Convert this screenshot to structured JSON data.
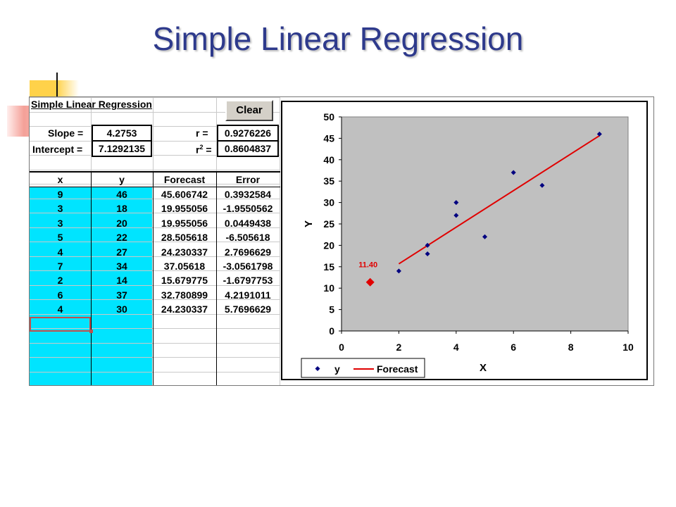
{
  "slide": {
    "title": "Simple Linear Regression"
  },
  "sheet": {
    "heading": "Simple Linear Regression",
    "clear_button": "Clear",
    "slope_label": "Slope =",
    "slope_value": "4.2753",
    "intercept_label": "Intercept =",
    "intercept_value": "7.1292135",
    "r_label": "r =",
    "r_value": "0.9276226",
    "r2_label_base": "r",
    "r2_label_sup": "2",
    "r2_label_eq": "=",
    "r2_value": "0.8604837",
    "columns": [
      "x",
      "y",
      "Forecast",
      "Error"
    ],
    "rows": [
      [
        "9",
        "46",
        "45.606742",
        "0.3932584"
      ],
      [
        "3",
        "18",
        "19.955056",
        "-1.9550562"
      ],
      [
        "3",
        "20",
        "19.955056",
        "0.0449438"
      ],
      [
        "5",
        "22",
        "28.505618",
        "-6.505618"
      ],
      [
        "4",
        "27",
        "24.230337",
        "2.7696629"
      ],
      [
        "7",
        "34",
        "37.05618",
        "-3.0561798"
      ],
      [
        "2",
        "14",
        "15.679775",
        "-1.6797753"
      ],
      [
        "6",
        "37",
        "32.780899",
        "4.2191011"
      ],
      [
        "4",
        "30",
        "24.230337",
        "5.7696629"
      ]
    ]
  },
  "colors": {
    "title": "#2e3a8c",
    "cyan": "#00e4ff",
    "plot_bg": "#c0c0c0",
    "points": "#000080",
    "line": "#e00000",
    "forecast_point": "#e00000"
  },
  "chart_data": {
    "type": "scatter",
    "xlabel": "X",
    "ylabel": "Y",
    "xlim": [
      0,
      10
    ],
    "ylim": [
      0,
      50
    ],
    "xticks": [
      0,
      2,
      4,
      6,
      8,
      10
    ],
    "yticks": [
      0,
      5,
      10,
      15,
      20,
      25,
      30,
      35,
      40,
      45,
      50
    ],
    "legend_position": "bottom",
    "series": [
      {
        "name": "y",
        "type": "scatter",
        "points": [
          [
            9,
            46
          ],
          [
            3,
            18
          ],
          [
            3,
            20
          ],
          [
            5,
            22
          ],
          [
            4,
            27
          ],
          [
            7,
            34
          ],
          [
            2,
            14
          ],
          [
            6,
            37
          ],
          [
            4,
            30
          ]
        ]
      },
      {
        "name": "Forecast",
        "type": "line",
        "points": [
          [
            2,
            15.679775
          ],
          [
            9,
            45.606742
          ]
        ]
      }
    ],
    "forecast_point": {
      "x": 1,
      "y": 11.4,
      "label": "11.40"
    }
  }
}
